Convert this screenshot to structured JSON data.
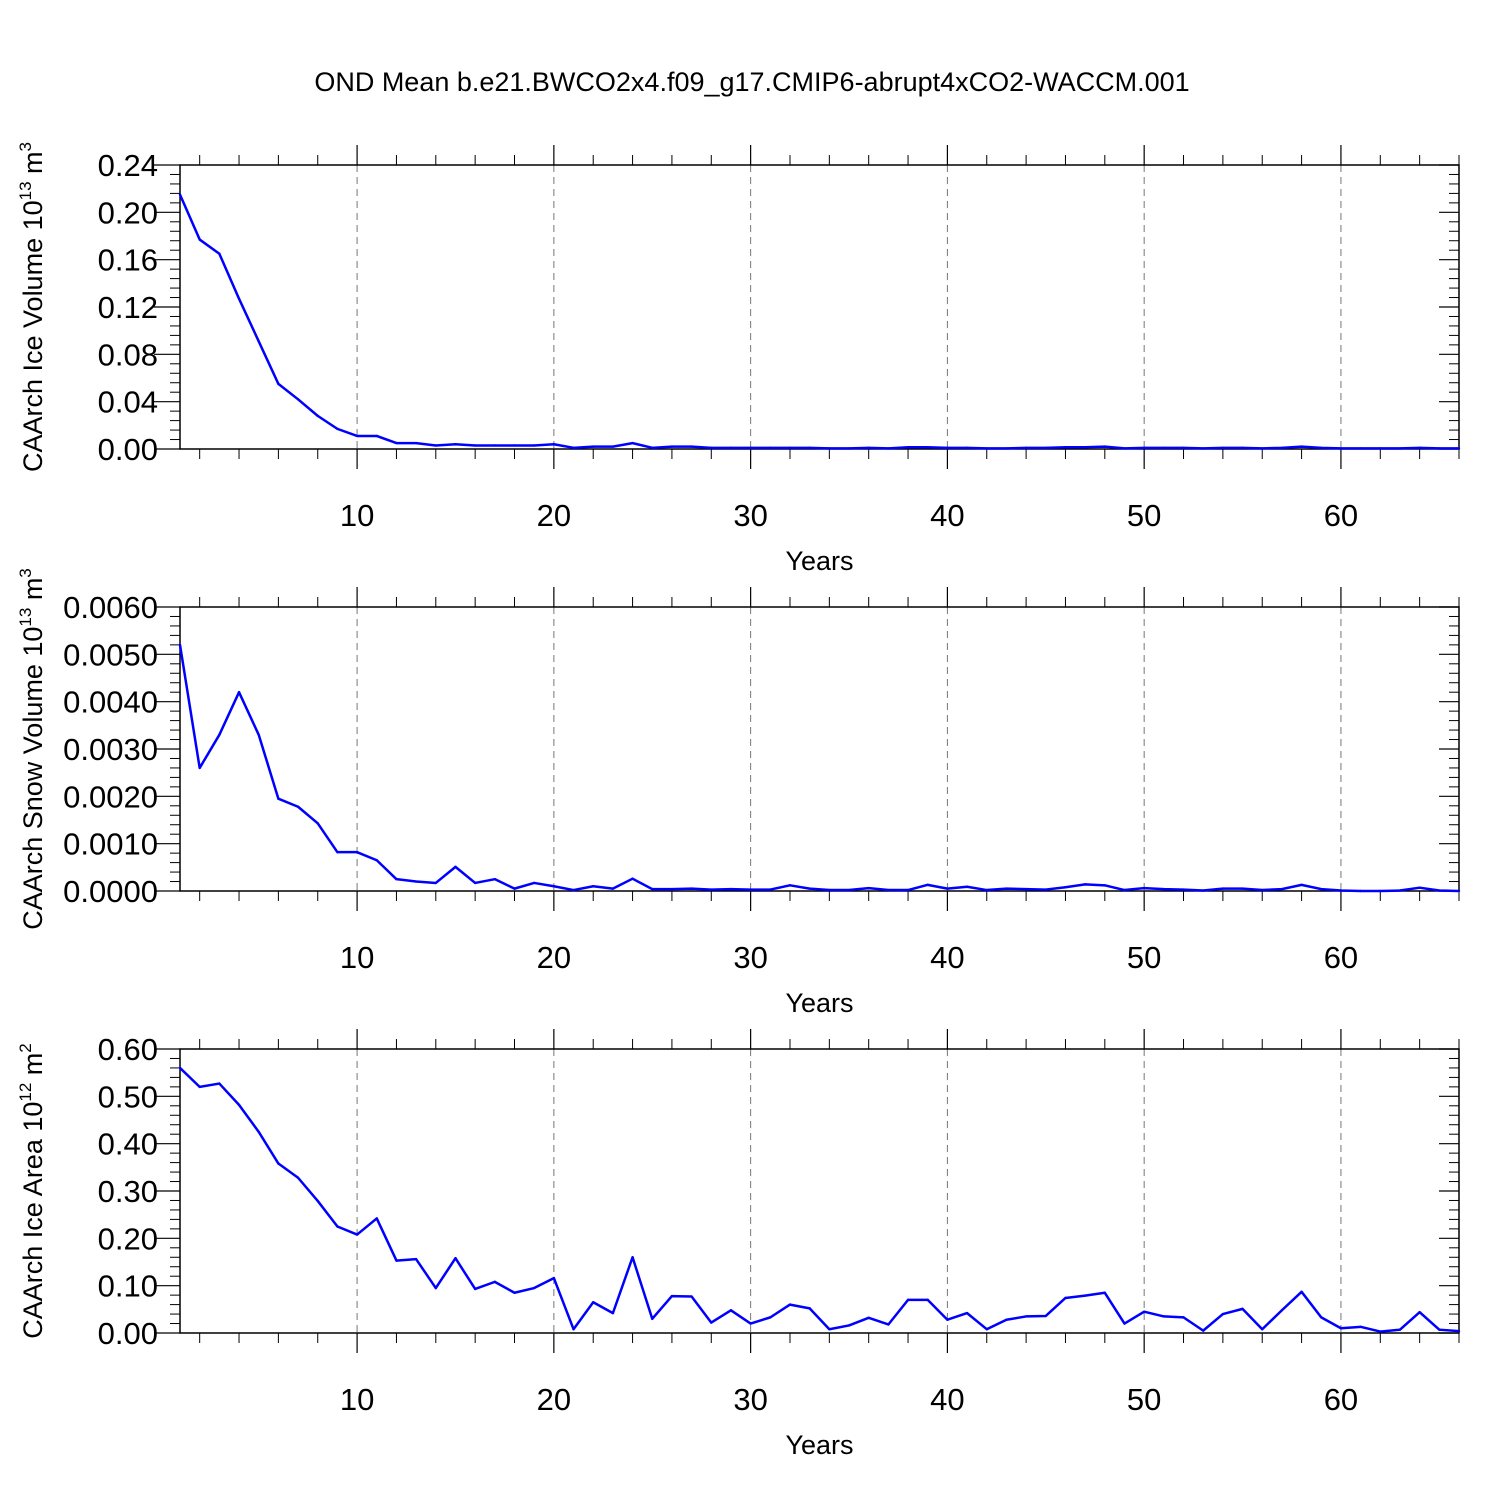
{
  "title": "OND Mean b.e21.BWCO2x4.f09_g17.CMIP6-abrupt4xCO2-WACCM.001",
  "line_color": "#0000ff",
  "chart_data": [
    {
      "type": "line",
      "name": "ice-volume",
      "ylabel_parts": [
        "CAArch Ice Volume 10",
        "13",
        " m",
        "3"
      ],
      "xlabel": "Years",
      "xlim": [
        1,
        66
      ],
      "ylim": [
        0,
        0.24
      ],
      "x_ticks": [
        10,
        20,
        30,
        40,
        50,
        60
      ],
      "x_tick_labels": [
        "10",
        "20",
        "30",
        "40",
        "50",
        "60"
      ],
      "y_ticks": [
        0,
        0.04,
        0.08,
        0.12,
        0.16,
        0.2,
        0.24
      ],
      "y_tick_labels": [
        "0.00",
        "0.04",
        "0.08",
        "0.12",
        "0.16",
        "0.20",
        "0.24"
      ],
      "grid": "x-dashed",
      "x": [
        1,
        2,
        3,
        4,
        5,
        6,
        7,
        8,
        9,
        10,
        11,
        12,
        13,
        14,
        15,
        16,
        17,
        18,
        19,
        20,
        21,
        22,
        23,
        24,
        25,
        26,
        27,
        28,
        29,
        30,
        31,
        32,
        33,
        34,
        35,
        36,
        37,
        38,
        39,
        40,
        41,
        42,
        43,
        44,
        45,
        46,
        47,
        48,
        49,
        50,
        51,
        52,
        53,
        54,
        55,
        56,
        57,
        58,
        59,
        60,
        61,
        62,
        63,
        64,
        65,
        66
      ],
      "values": [
        0.215,
        0.177,
        0.165,
        0.127,
        0.091,
        0.055,
        0.042,
        0.028,
        0.017,
        0.011,
        0.011,
        0.005,
        0.005,
        0.003,
        0.004,
        0.003,
        0.003,
        0.003,
        0.003,
        0.004,
        0.001,
        0.002,
        0.002,
        0.005,
        0.001,
        0.002,
        0.002,
        0.001,
        0.001,
        0.001,
        0.001,
        0.001,
        0.001,
        0.0005,
        0.0005,
        0.001,
        0.0005,
        0.0015,
        0.0015,
        0.001,
        0.001,
        0.0005,
        0.0005,
        0.001,
        0.001,
        0.0015,
        0.0015,
        0.002,
        0.0005,
        0.001,
        0.001,
        0.001,
        0.0005,
        0.001,
        0.001,
        0.0005,
        0.001,
        0.002,
        0.001,
        0.0005,
        0.0005,
        0.0005,
        0.0005,
        0.001,
        0.0005,
        0.0005
      ]
    },
    {
      "type": "line",
      "name": "snow-volume",
      "ylabel_parts": [
        "CAArch Snow Volume 10",
        "13",
        " m",
        "3"
      ],
      "xlabel": "Years",
      "xlim": [
        1,
        66
      ],
      "ylim": [
        0,
        0.006
      ],
      "x_ticks": [
        10,
        20,
        30,
        40,
        50,
        60
      ],
      "x_tick_labels": [
        "10",
        "20",
        "30",
        "40",
        "50",
        "60"
      ],
      "y_ticks": [
        0,
        0.001,
        0.002,
        0.003,
        0.004,
        0.005,
        0.006
      ],
      "y_tick_labels": [
        "0.0000",
        "0.0010",
        "0.0020",
        "0.0030",
        "0.0040",
        "0.0050",
        "0.0060"
      ],
      "grid": "x-dashed",
      "x": [
        1,
        2,
        3,
        4,
        5,
        6,
        7,
        8,
        9,
        10,
        11,
        12,
        13,
        14,
        15,
        16,
        17,
        18,
        19,
        20,
        21,
        22,
        23,
        24,
        25,
        26,
        27,
        28,
        29,
        30,
        31,
        32,
        33,
        34,
        35,
        36,
        37,
        38,
        39,
        40,
        41,
        42,
        43,
        44,
        45,
        46,
        47,
        48,
        49,
        50,
        51,
        52,
        53,
        54,
        55,
        56,
        57,
        58,
        59,
        60,
        61,
        62,
        63,
        64,
        65,
        66
      ],
      "values": [
        0.0052,
        0.0026,
        0.0033,
        0.0042,
        0.0033,
        0.00195,
        0.00178,
        0.00143,
        0.00082,
        0.00082,
        0.00065,
        0.00025,
        0.0002,
        0.00017,
        0.00051,
        0.00017,
        0.00025,
        5e-05,
        0.00017,
        0.0001,
        2e-05,
        0.0001,
        5e-05,
        0.00026,
        4e-05,
        4e-05,
        5e-05,
        3e-05,
        4e-05,
        3e-05,
        3e-05,
        0.00012,
        5e-05,
        2e-05,
        2e-05,
        6e-05,
        2e-05,
        2e-05,
        0.00013,
        5e-05,
        9e-05,
        2e-05,
        5e-05,
        4e-05,
        3e-05,
        8e-05,
        0.00014,
        0.00012,
        2e-05,
        6e-05,
        4e-05,
        3e-05,
        1e-05,
        5e-05,
        5e-05,
        2e-05,
        4e-05,
        0.00013,
        4e-05,
        1e-05,
        0.0,
        0.0,
        1e-05,
        7e-05,
        1e-05,
        0.0
      ]
    },
    {
      "type": "line",
      "name": "ice-area",
      "ylabel_parts": [
        "CAArch Ice Area 10",
        "12",
        " m",
        "2"
      ],
      "xlabel": "Years",
      "xlim": [
        1,
        66
      ],
      "ylim": [
        0,
        0.6
      ],
      "x_ticks": [
        10,
        20,
        30,
        40,
        50,
        60
      ],
      "x_tick_labels": [
        "10",
        "20",
        "30",
        "40",
        "50",
        "60"
      ],
      "y_ticks": [
        0,
        0.1,
        0.2,
        0.3,
        0.4,
        0.5,
        0.6
      ],
      "y_tick_labels": [
        "0.00",
        "0.10",
        "0.20",
        "0.30",
        "0.40",
        "0.50",
        "0.60"
      ],
      "grid": "x-dashed",
      "x": [
        1,
        2,
        3,
        4,
        5,
        6,
        7,
        8,
        9,
        10,
        11,
        12,
        13,
        14,
        15,
        16,
        17,
        18,
        19,
        20,
        21,
        22,
        23,
        24,
        25,
        26,
        27,
        28,
        29,
        30,
        31,
        32,
        33,
        34,
        35,
        36,
        37,
        38,
        39,
        40,
        41,
        42,
        43,
        44,
        45,
        46,
        47,
        48,
        49,
        50,
        51,
        52,
        53,
        54,
        55,
        56,
        57,
        58,
        59,
        60,
        61,
        62,
        63,
        64,
        65,
        66
      ],
      "values": [
        0.56,
        0.52,
        0.527,
        0.482,
        0.425,
        0.358,
        0.328,
        0.279,
        0.225,
        0.208,
        0.242,
        0.153,
        0.156,
        0.095,
        0.158,
        0.093,
        0.108,
        0.085,
        0.095,
        0.116,
        0.008,
        0.065,
        0.042,
        0.16,
        0.03,
        0.078,
        0.077,
        0.022,
        0.048,
        0.02,
        0.033,
        0.06,
        0.052,
        0.008,
        0.016,
        0.032,
        0.018,
        0.07,
        0.07,
        0.028,
        0.042,
        0.008,
        0.028,
        0.035,
        0.036,
        0.074,
        0.079,
        0.085,
        0.02,
        0.045,
        0.035,
        0.033,
        0.005,
        0.04,
        0.051,
        0.008,
        0.048,
        0.087,
        0.033,
        0.01,
        0.013,
        0.003,
        0.007,
        0.044,
        0.007,
        0.004
      ]
    }
  ]
}
